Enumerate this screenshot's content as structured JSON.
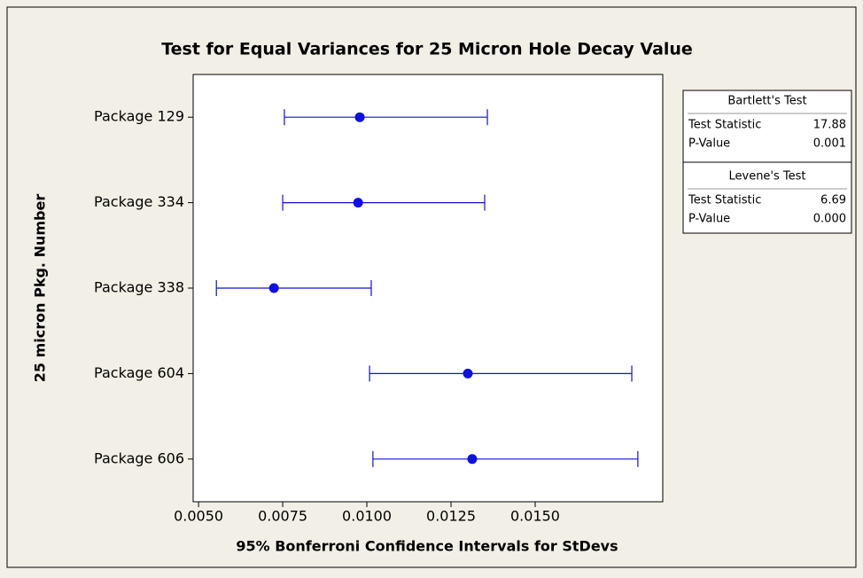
{
  "chart_data": {
    "type": "interval",
    "title": "Test for Equal Variances for 25 Micron Hole Decay Value",
    "x_label": "95% Bonferroni Confidence Intervals for StDevs",
    "y_label": "25 micron Pkg. Number",
    "categories": [
      "Package 129",
      "Package 334",
      "Package 338",
      "Package 604",
      "Package 606"
    ],
    "values": [
      0.00979,
      0.00974,
      0.00724,
      0.013,
      0.01313
    ],
    "lower": [
      0.00755,
      0.0075,
      0.00553,
      0.01008,
      0.01018
    ],
    "upper": [
      0.01358,
      0.0135,
      0.01013,
      0.01787,
      0.01805
    ],
    "color": "#1010e0",
    "xlim": [
      0.00484,
      0.01879
    ],
    "xticks": [
      {
        "value": 0.005,
        "label": "0.0050"
      },
      {
        "value": 0.0075,
        "label": "0.0075"
      },
      {
        "value": 0.01,
        "label": "0.0100"
      },
      {
        "value": 0.0125,
        "label": "0.0125"
      },
      {
        "value": 0.015,
        "label": "0.0150"
      }
    ],
    "tests": [
      {
        "name": "Bartlett's Test",
        "rows": [
          {
            "label": "Test Statistic",
            "value": "17.88"
          },
          {
            "label": "P-Value",
            "value": "0.001"
          }
        ]
      },
      {
        "name": "Levene's Test",
        "rows": [
          {
            "label": "Test Statistic",
            "value": "6.69"
          },
          {
            "label": "P-Value",
            "value": "0.000"
          }
        ]
      }
    ]
  }
}
